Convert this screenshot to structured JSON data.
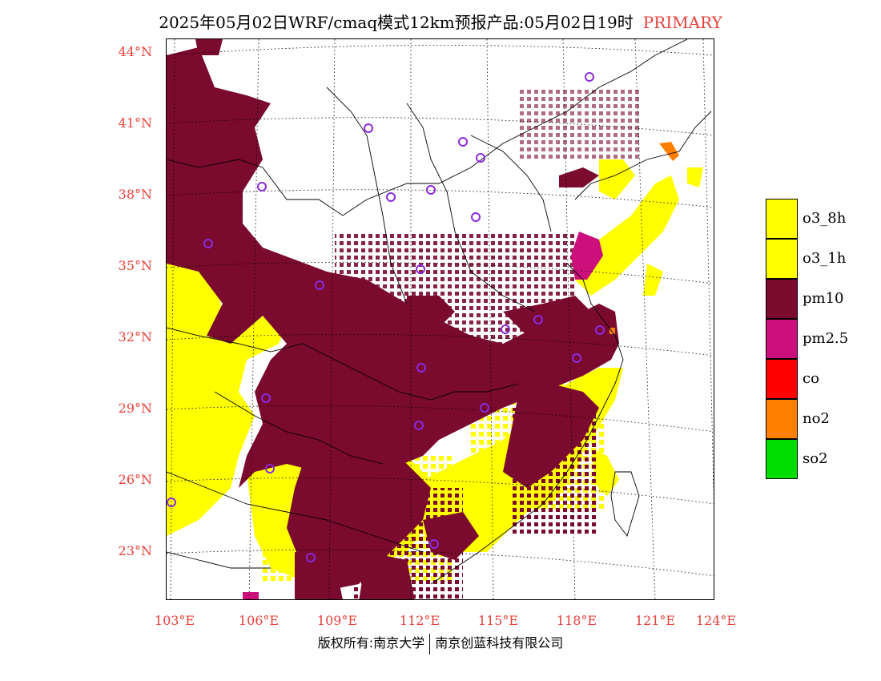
{
  "title": {
    "main": "2025年05月02日WRF/cmaq模式12km预报产品:05月02日19时",
    "tag": "PRIMARY"
  },
  "colors": {
    "o3_8h": "#ffff00",
    "o3_1h": "#ffff00",
    "pm10": "#7a0a2e",
    "pm2_5": "#cc0f7a",
    "co": "#ff0000",
    "no2": "#ff7f00",
    "so2": "#00dd00",
    "label_red": "#e8413a",
    "city_marker": "#8a2be2"
  },
  "lat_labels": [
    "44°N",
    "41°N",
    "38°N",
    "35°N",
    "32°N",
    "29°N",
    "26°N",
    "23°N"
  ],
  "lon_labels": [
    "103°E",
    "106°E",
    "109°E",
    "112°E",
    "115°E",
    "118°E",
    "121°E",
    "124°E"
  ],
  "legend": [
    {
      "label": "o3_8h",
      "color": "#ffff00"
    },
    {
      "label": "o3_1h",
      "color": "#ffff00"
    },
    {
      "label": "pm10",
      "color": "#7a0a2e"
    },
    {
      "label": "pm2.5",
      "color": "#cc0f7a"
    },
    {
      "label": "co",
      "color": "#ff0000"
    },
    {
      "label": "no2",
      "color": "#ff7f00"
    },
    {
      "label": "so2",
      "color": "#00dd00"
    }
  ],
  "footer": {
    "left": "版权所有:南京大学",
    "right": "南京创蓝科技有限公司"
  }
}
